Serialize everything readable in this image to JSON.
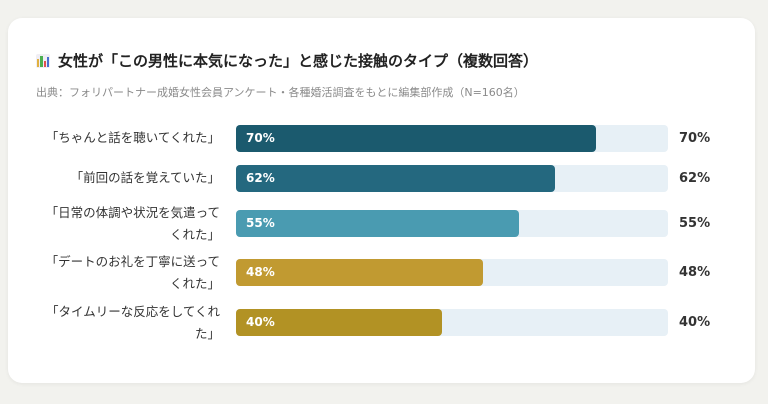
{
  "title": "女性が「この男性に本気になった」と感じた接触のタイプ（複数回答）",
  "subtitle": "出典：フォリパートナー成婚女性会員アンケート・各種婚活調査をもとに編集部作成（N=160名）",
  "title_icon": "bar-chart-icon",
  "chart_data": {
    "type": "bar",
    "orientation": "horizontal",
    "title": "女性が「この男性に本気になった」と感じた接触のタイプ（複数回答）",
    "categories": [
      "「ちゃんと話を聴いてくれた」",
      "「前回の話を覚えていた」",
      "「日常の体調や状況を気遣ってくれた」",
      "「デートのお礼を丁寧に送ってくれた」",
      "「タイムリーな反応をしてくれた」"
    ],
    "values": [
      70,
      62,
      55,
      48,
      40
    ],
    "value_labels": [
      "70%",
      "62%",
      "55%",
      "48%",
      "40%"
    ],
    "colors": [
      "#1b5a6e",
      "#24687f",
      "#4a9bb1",
      "#c19a31",
      "#b29224"
    ],
    "track_color": "#e7f0f6",
    "xlim": [
      0,
      84
    ],
    "grid": false,
    "legend": "none"
  }
}
